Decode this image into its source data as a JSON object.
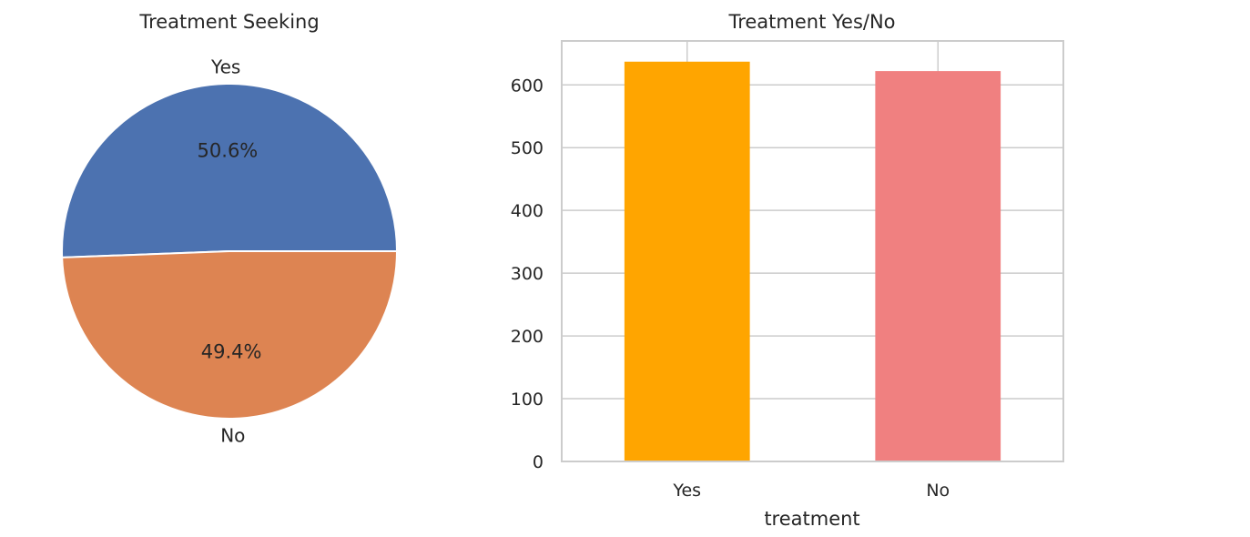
{
  "chart_data": [
    {
      "type": "pie",
      "title": "Treatment Seeking",
      "categories": [
        "Yes",
        "No"
      ],
      "values": [
        50.6,
        49.4
      ],
      "value_labels": [
        "50.6%",
        "49.4%"
      ],
      "colors": [
        "#4c72b0",
        "#dd8452"
      ]
    },
    {
      "type": "bar",
      "title": "Treatment Yes/No",
      "categories": [
        "Yes",
        "No"
      ],
      "values": [
        637,
        622
      ],
      "colors": [
        "#ffa500",
        "#f08080"
      ],
      "xlabel": "treatment",
      "ylabel": "",
      "ylim": [
        0,
        670
      ],
      "yticks": [
        0,
        100,
        200,
        300,
        400,
        500,
        600
      ],
      "grid": true
    }
  ]
}
